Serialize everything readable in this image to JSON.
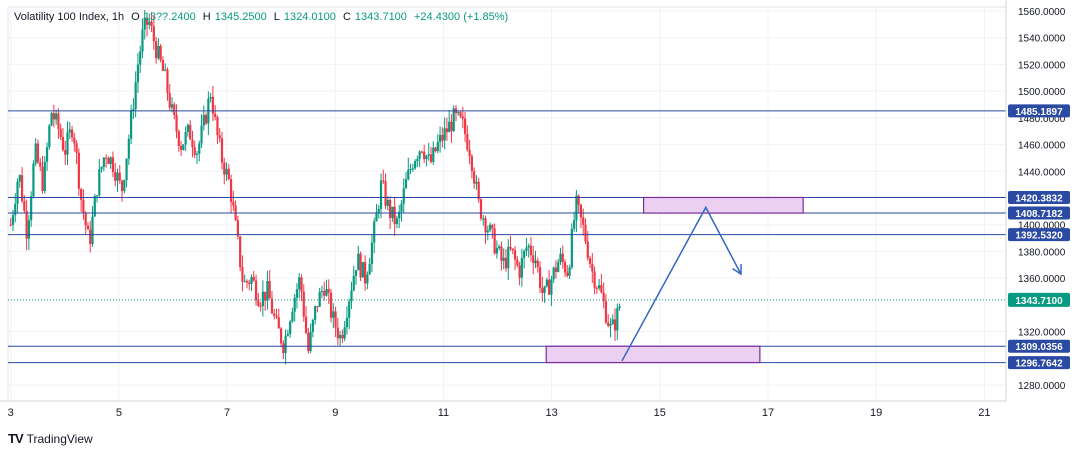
{
  "chart_data": {
    "type": "candlestick",
    "title": "Volatility 100 Index, 1h",
    "ohlc": {
      "open_label": "O",
      "open": "13??.2400",
      "high_label": "H",
      "high": "1345.2500",
      "low_label": "L",
      "low": "1324.0100",
      "close_label": "C",
      "close": "1343.7100",
      "change": "+24.4300 (+1.85%)"
    },
    "x_ticks": [
      "3",
      "5",
      "7",
      "9",
      "11",
      "13",
      "15",
      "17",
      "19",
      "21"
    ],
    "x_tick_values": [
      3,
      5,
      7,
      9,
      11,
      13,
      15,
      17,
      19,
      21
    ],
    "xlim": [
      2.95,
      21.4
    ],
    "ylim": [
      1268,
      1563
    ],
    "y_ticks": [
      "1560.0000",
      "1540.0000",
      "1520.0000",
      "1500.0000",
      "1480.0000",
      "1460.0000",
      "1440.0000",
      "1400.0000",
      "1380.0000",
      "1360.0000",
      "1320.0000",
      "1280.0000"
    ],
    "y_tick_values": [
      1560,
      1540,
      1520,
      1500,
      1480,
      1460,
      1440,
      1400,
      1380,
      1360,
      1320,
      1280
    ],
    "horizontal_levels": [
      {
        "value": 1485.1897,
        "label": "1485.1897"
      },
      {
        "value": 1420.3832,
        "label": "1420.3832"
      },
      {
        "value": 1408.7182,
        "label": "1408.7182"
      },
      {
        "value": 1392.532,
        "label": "1392.5320"
      },
      {
        "value": 1309.0356,
        "label": "1309.0356"
      },
      {
        "value": 1296.7642,
        "label": "1296.7642"
      }
    ],
    "current_price": {
      "value": 1343.71,
      "label": "1343.7100"
    },
    "zones": [
      {
        "x0": 14.7,
        "x1": 17.65,
        "y0": 1408.7,
        "y1": 1420.4
      },
      {
        "x0": 12.9,
        "x1": 16.85,
        "y0": 1296.8,
        "y1": 1309.0
      }
    ],
    "projection_path": [
      [
        14.3,
        1298
      ],
      [
        15.85,
        1413
      ],
      [
        16.5,
        1363
      ]
    ],
    "price_path": [
      [
        3.0,
        1400
      ],
      [
        3.15,
        1440
      ],
      [
        3.3,
        1395
      ],
      [
        3.45,
        1455
      ],
      [
        3.6,
        1430
      ],
      [
        3.75,
        1485
      ],
      [
        3.9,
        1470
      ],
      [
        4.0,
        1455
      ],
      [
        4.15,
        1475
      ],
      [
        4.3,
        1420
      ],
      [
        4.45,
        1385
      ],
      [
        4.6,
        1430
      ],
      [
        4.75,
        1455
      ],
      [
        4.9,
        1445
      ],
      [
        5.05,
        1425
      ],
      [
        5.2,
        1470
      ],
      [
        5.35,
        1520
      ],
      [
        5.45,
        1545
      ],
      [
        5.55,
        1553
      ],
      [
        5.7,
        1530
      ],
      [
        5.85,
        1510
      ],
      [
        6.0,
        1480
      ],
      [
        6.15,
        1460
      ],
      [
        6.3,
        1470
      ],
      [
        6.45,
        1455
      ],
      [
        6.6,
        1480
      ],
      [
        6.7,
        1500
      ],
      [
        6.8,
        1470
      ],
      [
        6.9,
        1450
      ],
      [
        7.05,
        1430
      ],
      [
        7.15,
        1400
      ],
      [
        7.3,
        1355
      ],
      [
        7.45,
        1360
      ],
      [
        7.6,
        1345
      ],
      [
        7.75,
        1350
      ],
      [
        7.9,
        1325
      ],
      [
        8.05,
        1310
      ],
      [
        8.2,
        1340
      ],
      [
        8.35,
        1360
      ],
      [
        8.5,
        1305
      ],
      [
        8.65,
        1340
      ],
      [
        8.8,
        1355
      ],
      [
        8.95,
        1330
      ],
      [
        9.1,
        1315
      ],
      [
        9.25,
        1345
      ],
      [
        9.4,
        1375
      ],
      [
        9.55,
        1360
      ],
      [
        9.7,
        1390
      ],
      [
        9.85,
        1430
      ],
      [
        10.0,
        1410
      ],
      [
        10.15,
        1400
      ],
      [
        10.3,
        1430
      ],
      [
        10.45,
        1450
      ],
      [
        10.6,
        1460
      ],
      [
        10.75,
        1445
      ],
      [
        10.9,
        1460
      ],
      [
        11.05,
        1470
      ],
      [
        11.2,
        1480
      ],
      [
        11.35,
        1475
      ],
      [
        11.5,
        1455
      ],
      [
        11.65,
        1415
      ],
      [
        11.8,
        1400
      ],
      [
        11.95,
        1385
      ],
      [
        12.1,
        1370
      ],
      [
        12.25,
        1380
      ],
      [
        12.4,
        1365
      ],
      [
        12.55,
        1385
      ],
      [
        12.7,
        1375
      ],
      [
        12.85,
        1345
      ],
      [
        13.0,
        1360
      ],
      [
        13.15,
        1375
      ],
      [
        13.3,
        1365
      ],
      [
        13.45,
        1415
      ],
      [
        13.6,
        1395
      ],
      [
        13.75,
        1365
      ],
      [
        13.9,
        1350
      ],
      [
        14.0,
        1335
      ],
      [
        14.1,
        1320
      ],
      [
        14.2,
        1330
      ],
      [
        14.28,
        1343.71
      ]
    ]
  },
  "colors": {
    "up": "#089981",
    "down": "#f23645",
    "level": "#2a4aa3",
    "zone_fill": "#e8c8f0",
    "zone_stroke": "#7b2d9a",
    "arrow": "#3466c4",
    "current": "#089981"
  },
  "footer": {
    "brand": "TradingView"
  }
}
